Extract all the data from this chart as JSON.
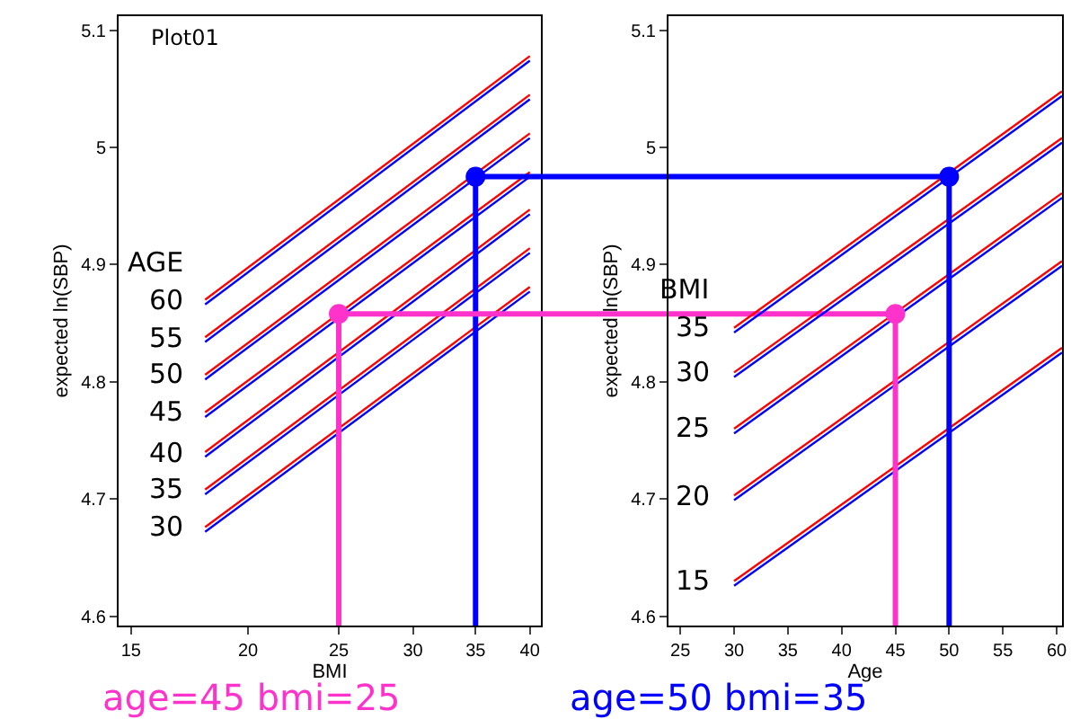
{
  "chart_data": [
    {
      "type": "line",
      "title": "Plot01",
      "xlabel": "BMI",
      "ylabel": "expected ln(SBP)",
      "legend_title": "AGE",
      "log": "x",
      "xlim": [
        14.55,
        41.1
      ],
      "ylim": [
        4.592,
        5.112
      ],
      "xticks": [
        15,
        20,
        25,
        30,
        35,
        40
      ],
      "yticks": [
        4.6,
        4.7,
        4.8,
        4.9,
        5,
        5.1
      ],
      "grid": false,
      "legend": false,
      "marker": "none",
      "annotations": [
        "age=45 bmi=25"
      ],
      "ref_lines": [
        {
          "axis": "y",
          "value": 4.858,
          "color": "#ff33cc"
        },
        {
          "axis": "y",
          "value": 4.975,
          "color": "#0000ff"
        }
      ],
      "series": [
        {
          "name": "60",
          "color": "#ff0000",
          "x": [
            18,
            40
          ],
          "values": [
            4.87,
            5.078
          ]
        },
        {
          "color": "#0000ff",
          "x": [
            18,
            40
          ],
          "values": [
            4.866,
            5.074
          ]
        },
        {
          "name": "55",
          "color": "#ff0000",
          "x": [
            18,
            40
          ],
          "values": [
            4.838,
            5.045
          ]
        },
        {
          "color": "#0000ff",
          "x": [
            18,
            40
          ],
          "values": [
            4.834,
            5.041
          ]
        },
        {
          "name": "50",
          "color": "#ff0000",
          "x": [
            18,
            40
          ],
          "values": [
            4.806,
            5.012
          ]
        },
        {
          "color": "#0000ff",
          "x": [
            18,
            40
          ],
          "values": [
            4.802,
            5.008
          ]
        },
        {
          "name": "45",
          "color": "#ff0000",
          "x": [
            18,
            40
          ],
          "values": [
            4.774,
            4.979
          ]
        },
        {
          "color": "#0000ff",
          "x": [
            18,
            40
          ],
          "values": [
            4.77,
            4.975
          ]
        },
        {
          "name": "40",
          "color": "#ff0000",
          "x": [
            18,
            40
          ],
          "values": [
            4.74,
            4.947
          ]
        },
        {
          "color": "#0000ff",
          "x": [
            18,
            40
          ],
          "values": [
            4.736,
            4.943
          ]
        },
        {
          "name": "35",
          "color": "#ff0000",
          "x": [
            18,
            40
          ],
          "values": [
            4.708,
            4.914
          ]
        },
        {
          "color": "#0000ff",
          "x": [
            18,
            40
          ],
          "values": [
            4.704,
            4.91
          ]
        },
        {
          "name": "30",
          "color": "#ff0000",
          "x": [
            18,
            40
          ],
          "values": [
            4.676,
            4.881
          ]
        },
        {
          "color": "#0000ff",
          "x": [
            18,
            40
          ],
          "values": [
            4.672,
            4.877
          ]
        },
        {
          "color": "#ff33cc",
          "x": [
            25,
            25
          ],
          "values": [
            4.592,
            4.858
          ]
        },
        {
          "color": "#0000ff",
          "x": [
            35,
            35
          ],
          "values": [
            4.592,
            4.975
          ]
        },
        {
          "type": "scatter",
          "color": "#ff33cc",
          "marker": "circle",
          "x": [
            25
          ],
          "values": [
            4.858
          ]
        },
        {
          "type": "scatter",
          "color": "#0000ff",
          "marker": "circle",
          "x": [
            35
          ],
          "values": [
            4.975
          ]
        }
      ]
    },
    {
      "type": "line",
      "xlabel": "Age",
      "ylabel": "expected ln(SBP)",
      "legend_title": "BMI",
      "xlim": [
        23.9,
        60.5
      ],
      "ylim": [
        4.592,
        5.112
      ],
      "xticks": [
        25,
        30,
        35,
        40,
        45,
        50,
        55,
        60
      ],
      "yticks": [
        4.6,
        4.7,
        4.8,
        4.9,
        5,
        5.1
      ],
      "grid": false,
      "legend": false,
      "marker": "none",
      "annotations": [
        "age=50 bmi=35"
      ],
      "series": [
        {
          "name": "35",
          "color": "#ff0000",
          "x": [
            30,
            60.5
          ],
          "values": [
            4.846,
            5.048
          ]
        },
        {
          "color": "#0000ff",
          "x": [
            30,
            60.5
          ],
          "values": [
            4.842,
            5.044
          ]
        },
        {
          "name": "30",
          "color": "#ff0000",
          "x": [
            30,
            60.5
          ],
          "values": [
            4.808,
            5.008
          ]
        },
        {
          "color": "#0000ff",
          "x": [
            30,
            60.5
          ],
          "values": [
            4.804,
            5.004
          ]
        },
        {
          "name": "25",
          "color": "#ff0000",
          "x": [
            30,
            60.5
          ],
          "values": [
            4.76,
            4.961
          ]
        },
        {
          "color": "#0000ff",
          "x": [
            30,
            60.5
          ],
          "values": [
            4.756,
            4.957
          ]
        },
        {
          "name": "20",
          "color": "#ff0000",
          "x": [
            30,
            60.5
          ],
          "values": [
            4.703,
            4.903
          ]
        },
        {
          "color": "#0000ff",
          "x": [
            30,
            60.5
          ],
          "values": [
            4.699,
            4.899
          ]
        },
        {
          "name": "15",
          "color": "#ff0000",
          "x": [
            30,
            60.5
          ],
          "values": [
            4.63,
            4.829
          ]
        },
        {
          "color": "#0000ff",
          "x": [
            30,
            60.5
          ],
          "values": [
            4.626,
            4.825
          ]
        },
        {
          "color": "#0000ff",
          "x": [
            50,
            50
          ],
          "values": [
            4.592,
            4.975
          ]
        },
        {
          "color": "#ff33cc",
          "x": [
            45,
            45
          ],
          "values": [
            4.592,
            4.858
          ]
        },
        {
          "type": "scatter",
          "color": "#0000ff",
          "marker": "circle",
          "x": [
            50
          ],
          "values": [
            4.975
          ]
        },
        {
          "type": "scatter",
          "color": "#ff33cc",
          "marker": "circle",
          "x": [
            45
          ],
          "values": [
            4.858
          ]
        }
      ]
    }
  ]
}
